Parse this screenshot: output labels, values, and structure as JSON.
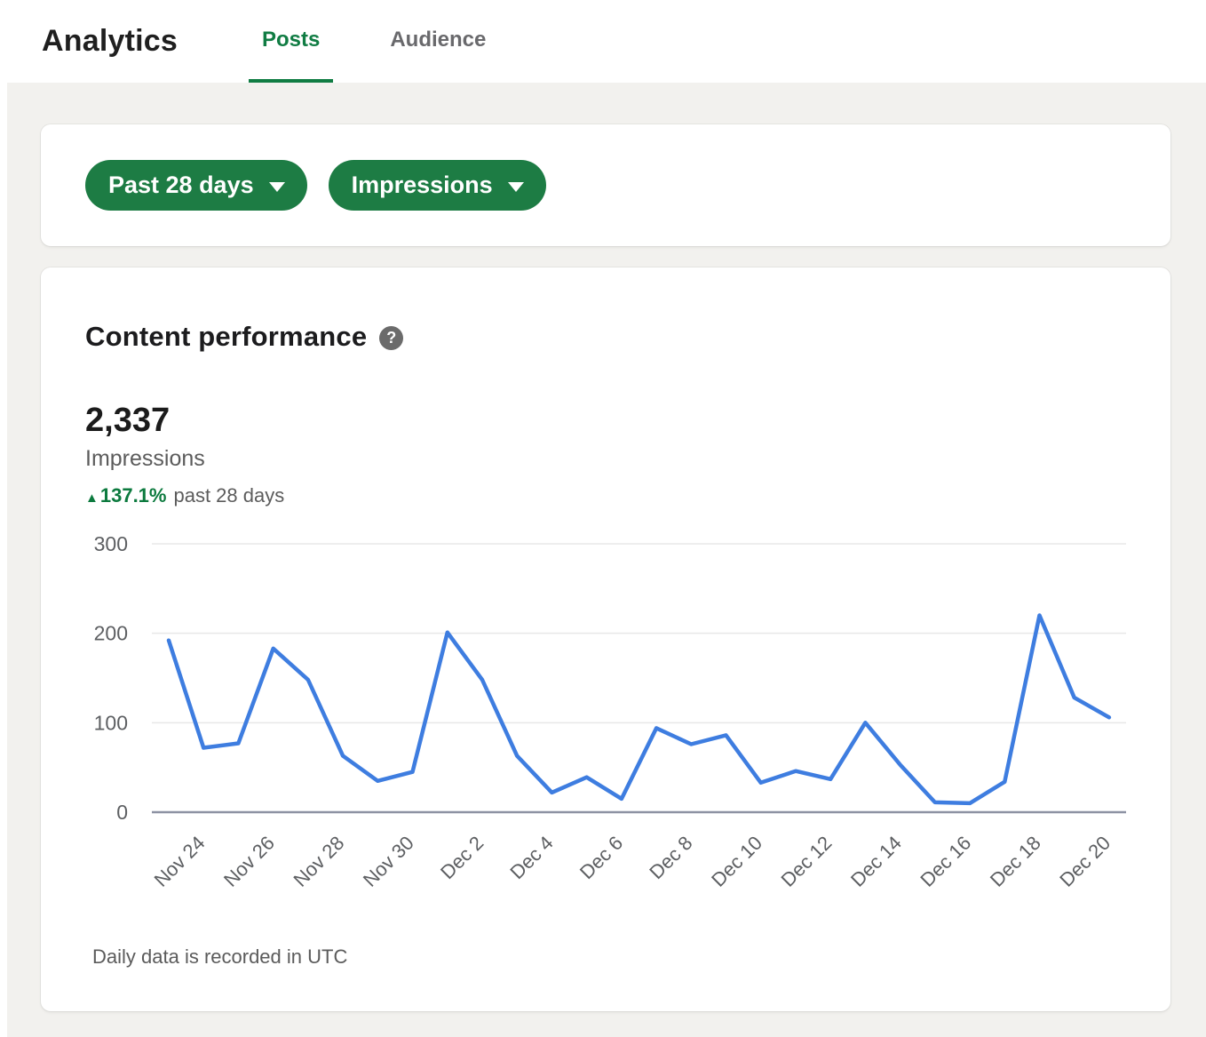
{
  "header": {
    "title": "Analytics",
    "tabs": [
      {
        "label": "Posts",
        "active": true
      },
      {
        "label": "Audience",
        "active": false
      }
    ]
  },
  "filters": {
    "buttons": [
      {
        "label": "Past 28 days",
        "icon": "chevron-down-icon"
      },
      {
        "label": "Impressions",
        "icon": "chevron-down-icon"
      }
    ]
  },
  "content_performance": {
    "title": "Content performance",
    "help_icon_glyph": "?",
    "total": "2,337",
    "metric_label": "Impressions",
    "delta": {
      "arrow": "▲",
      "value": "137.1%",
      "suffix": "past 28 days"
    }
  },
  "footnote": "Daily data is recorded in UTC",
  "colors": {
    "accent_green": "#1d7c44",
    "tab_active_green": "#107c43",
    "delta_green": "#0c7a3e",
    "chart_line_blue": "#3e7de0",
    "page_background": "#f2f1ee"
  },
  "chart_data": {
    "type": "line",
    "title": "Content performance",
    "ylabel": "Impressions",
    "x": [
      "Nov 24",
      "Nov 25",
      "Nov 26",
      "Nov 27",
      "Nov 28",
      "Nov 29",
      "Nov 30",
      "Dec 1",
      "Dec 2",
      "Dec 3",
      "Dec 4",
      "Dec 5",
      "Dec 6",
      "Dec 7",
      "Dec 8",
      "Dec 9",
      "Dec 10",
      "Dec 11",
      "Dec 12",
      "Dec 13",
      "Dec 14",
      "Dec 15",
      "Dec 16",
      "Dec 17",
      "Dec 18",
      "Dec 19",
      "Dec 20",
      "Dec 21"
    ],
    "values": [
      192,
      72,
      77,
      183,
      148,
      63,
      35,
      45,
      201,
      148,
      63,
      22,
      39,
      15,
      94,
      76,
      86,
      33,
      46,
      37,
      100,
      53,
      11,
      10,
      34,
      220,
      128,
      106
    ],
    "x_tick_labels": [
      "Nov 24",
      "Nov 26",
      "Nov 28",
      "Nov 30",
      "Dec 2",
      "Dec 4",
      "Dec 6",
      "Dec 8",
      "Dec 10",
      "Dec 12",
      "Dec 14",
      "Dec 16",
      "Dec 18",
      "Dec 20"
    ],
    "x_tick_every": 2,
    "ylim": [
      0,
      300
    ],
    "yticks": [
      0,
      100,
      200,
      300
    ],
    "grid": true,
    "legend": "none",
    "line_color": "#3e7de0",
    "grid_color": "#e8e8e8",
    "axis_color": "#8d92a3",
    "total": 2337
  }
}
